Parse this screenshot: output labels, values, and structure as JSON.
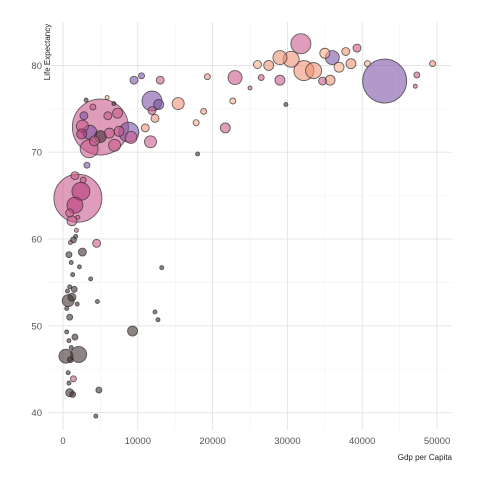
{
  "chart_data": {
    "type": "scatter",
    "title": "",
    "xlabel": "Gdp per Capita",
    "ylabel": "Life Expectancy",
    "xlim": [
      -2000,
      52000
    ],
    "ylim": [
      38,
      85
    ],
    "x_ticks": [
      0,
      10000,
      20000,
      30000,
      40000,
      50000
    ],
    "y_ticks": [
      40,
      50,
      60,
      70,
      80
    ],
    "grid": true,
    "legend": "none",
    "colors": {
      "low": "#000000",
      "mid": "#b5367a",
      "high": "#fdae8c",
      "purple": "#7b4fa6",
      "stroke": "#333333"
    },
    "points": [
      {
        "x": 43000,
        "y": 78.2,
        "size": 22,
        "color": "#7b4fa6"
      },
      {
        "x": 31800,
        "y": 82.5,
        "size": 10,
        "color": "#c8568a"
      },
      {
        "x": 32200,
        "y": 79.4,
        "size": 10,
        "color": "#f08f70"
      },
      {
        "x": 33500,
        "y": 79.4,
        "size": 8,
        "color": "#f08f70"
      },
      {
        "x": 30500,
        "y": 80.7,
        "size": 8,
        "color": "#f08f70"
      },
      {
        "x": 29000,
        "y": 80.9,
        "size": 7,
        "color": "#f08f70"
      },
      {
        "x": 36000,
        "y": 80.9,
        "size": 7,
        "color": "#7b4fa6"
      },
      {
        "x": 35000,
        "y": 81.4,
        "size": 5,
        "color": "#fdae8c"
      },
      {
        "x": 37800,
        "y": 81.6,
        "size": 4,
        "color": "#f08f70"
      },
      {
        "x": 39300,
        "y": 82.0,
        "size": 4,
        "color": "#c8568a"
      },
      {
        "x": 26000,
        "y": 80.1,
        "size": 4,
        "color": "#fdae8c"
      },
      {
        "x": 27500,
        "y": 80.0,
        "size": 5,
        "color": "#f08f70"
      },
      {
        "x": 29000,
        "y": 78.3,
        "size": 5,
        "color": "#c8568a"
      },
      {
        "x": 26500,
        "y": 78.6,
        "size": 3,
        "color": "#c8568a"
      },
      {
        "x": 23000,
        "y": 78.6,
        "size": 7,
        "color": "#c8568a"
      },
      {
        "x": 21700,
        "y": 72.8,
        "size": 5,
        "color": "#c8568a"
      },
      {
        "x": 22700,
        "y": 75.9,
        "size": 3,
        "color": "#fdae8c"
      },
      {
        "x": 35700,
        "y": 78.3,
        "size": 5,
        "color": "#f08f70"
      },
      {
        "x": 34700,
        "y": 78.2,
        "size": 4,
        "color": "#c8568a"
      },
      {
        "x": 36900,
        "y": 79.8,
        "size": 5,
        "color": "#fdae8c"
      },
      {
        "x": 38500,
        "y": 80.2,
        "size": 5,
        "color": "#f08f70"
      },
      {
        "x": 47300,
        "y": 78.9,
        "size": 3,
        "color": "#c8568a"
      },
      {
        "x": 49400,
        "y": 80.2,
        "size": 3,
        "color": "#f08f70"
      },
      {
        "x": 40700,
        "y": 80.2,
        "size": 3,
        "color": "#fdae8c"
      },
      {
        "x": 47100,
        "y": 77.6,
        "size": 2,
        "color": "#c8568a"
      },
      {
        "x": 19300,
        "y": 78.7,
        "size": 3,
        "color": "#f08f70"
      },
      {
        "x": 18800,
        "y": 74.7,
        "size": 3,
        "color": "#f08f70"
      },
      {
        "x": 17800,
        "y": 73.4,
        "size": 3,
        "color": "#fdae8c"
      },
      {
        "x": 18000,
        "y": 69.8,
        "size": 2,
        "color": "#3a2a2a"
      },
      {
        "x": 13000,
        "y": 78.3,
        "size": 4,
        "color": "#c8568a"
      },
      {
        "x": 12800,
        "y": 75.5,
        "size": 5,
        "color": "#7b4fa6"
      },
      {
        "x": 11900,
        "y": 75.9,
        "size": 10,
        "color": "#7b4fa6"
      },
      {
        "x": 15400,
        "y": 75.6,
        "size": 6,
        "color": "#f08f70"
      },
      {
        "x": 9500,
        "y": 78.3,
        "size": 4,
        "color": "#7b4fa6"
      },
      {
        "x": 10500,
        "y": 78.8,
        "size": 3,
        "color": "#7b4fa6"
      },
      {
        "x": 11900,
        "y": 74.8,
        "size": 4,
        "color": "#c8568a"
      },
      {
        "x": 11700,
        "y": 71.2,
        "size": 6,
        "color": "#c8568a"
      },
      {
        "x": 11000,
        "y": 72.8,
        "size": 4,
        "color": "#f08f70"
      },
      {
        "x": 12300,
        "y": 73.9,
        "size": 4,
        "color": "#f08f70"
      },
      {
        "x": 8800,
        "y": 72.3,
        "size": 10,
        "color": "#7b4fa6"
      },
      {
        "x": 9100,
        "y": 71.7,
        "size": 6,
        "color": "#c8568a"
      },
      {
        "x": 7500,
        "y": 72.4,
        "size": 5,
        "color": "#c8568a"
      },
      {
        "x": 5000,
        "y": 72.9,
        "size": 28,
        "color": "#c8568a"
      },
      {
        "x": 5000,
        "y": 71.8,
        "size": 6,
        "color": "#3a2a2a"
      },
      {
        "x": 3600,
        "y": 72.3,
        "size": 7,
        "color": "#7b4fa6"
      },
      {
        "x": 6200,
        "y": 72.2,
        "size": 5,
        "color": "#c8568a"
      },
      {
        "x": 6000,
        "y": 74.2,
        "size": 4,
        "color": "#c8568a"
      },
      {
        "x": 7300,
        "y": 74.5,
        "size": 5,
        "color": "#c8568a"
      },
      {
        "x": 6900,
        "y": 70.8,
        "size": 6,
        "color": "#c8568a"
      },
      {
        "x": 6800,
        "y": 75.6,
        "size": 2,
        "color": "#3a2a2a"
      },
      {
        "x": 5900,
        "y": 76.3,
        "size": 2,
        "color": "#fdae8c"
      },
      {
        "x": 2600,
        "y": 73.0,
        "size": 6,
        "color": "#c8568a"
      },
      {
        "x": 2800,
        "y": 74.2,
        "size": 4,
        "color": "#7b4fa6"
      },
      {
        "x": 4000,
        "y": 75.2,
        "size": 3,
        "color": "#c8568a"
      },
      {
        "x": 4200,
        "y": 71.3,
        "size": 5,
        "color": "#c8568a"
      },
      {
        "x": 3500,
        "y": 70.4,
        "size": 9,
        "color": "#c8568a"
      },
      {
        "x": 2500,
        "y": 72.1,
        "size": 5,
        "color": "#b5367a"
      },
      {
        "x": 3100,
        "y": 76.0,
        "size": 2,
        "color": "#3a2a2a"
      },
      {
        "x": 2000,
        "y": 64.7,
        "size": 24,
        "color": "#c8568a"
      },
      {
        "x": 2400,
        "y": 65.5,
        "size": 9,
        "color": "#b5367a"
      },
      {
        "x": 1600,
        "y": 63.9,
        "size": 8,
        "color": "#b5367a"
      },
      {
        "x": 1200,
        "y": 62.1,
        "size": 5,
        "color": "#c8568a"
      },
      {
        "x": 900,
        "y": 63.0,
        "size": 4,
        "color": "#c8568a"
      },
      {
        "x": 1600,
        "y": 67.3,
        "size": 4,
        "color": "#c8568a"
      },
      {
        "x": 2700,
        "y": 66.8,
        "size": 3,
        "color": "#c8568a"
      },
      {
        "x": 3200,
        "y": 68.5,
        "size": 3,
        "color": "#7b4fa6"
      },
      {
        "x": 4500,
        "y": 59.5,
        "size": 4,
        "color": "#c8568a"
      },
      {
        "x": 2000,
        "y": 62.5,
        "size": 2,
        "color": "#c8568a"
      },
      {
        "x": 1400,
        "y": 59.9,
        "size": 3,
        "color": "#3a2a2a"
      },
      {
        "x": 1700,
        "y": 60.3,
        "size": 2,
        "color": "#3a2a2a"
      },
      {
        "x": 1000,
        "y": 59.6,
        "size": 2,
        "color": "#b5367a"
      },
      {
        "x": 1800,
        "y": 61.0,
        "size": 2,
        "color": "#c8568a"
      },
      {
        "x": 2600,
        "y": 58.5,
        "size": 4,
        "color": "#3a2a2a"
      },
      {
        "x": 800,
        "y": 58.2,
        "size": 3,
        "color": "#3a2a2a"
      },
      {
        "x": 1100,
        "y": 57.3,
        "size": 2,
        "color": "#3a2a2a"
      },
      {
        "x": 2200,
        "y": 56.8,
        "size": 2,
        "color": "#3a2a2a"
      },
      {
        "x": 3700,
        "y": 55.4,
        "size": 2,
        "color": "#3a2a2a"
      },
      {
        "x": 1300,
        "y": 55.9,
        "size": 2,
        "color": "#3a2a2a"
      },
      {
        "x": 900,
        "y": 54.5,
        "size": 2,
        "color": "#3a2a2a"
      },
      {
        "x": 1500,
        "y": 54.2,
        "size": 3,
        "color": "#3a2a2a"
      },
      {
        "x": 600,
        "y": 54.0,
        "size": 2,
        "color": "#3a2a2a"
      },
      {
        "x": 1200,
        "y": 53.3,
        "size": 4,
        "color": "#3a2a2a"
      },
      {
        "x": 700,
        "y": 52.9,
        "size": 6,
        "color": "#3a2a2a"
      },
      {
        "x": 500,
        "y": 52.0,
        "size": 2,
        "color": "#3a2a2a"
      },
      {
        "x": 1900,
        "y": 52.5,
        "size": 2,
        "color": "#3a2a2a"
      },
      {
        "x": 4600,
        "y": 52.8,
        "size": 2,
        "color": "#3a2a2a"
      },
      {
        "x": 900,
        "y": 51.0,
        "size": 3,
        "color": "#3a2a2a"
      },
      {
        "x": 500,
        "y": 49.3,
        "size": 2,
        "color": "#3a2a2a"
      },
      {
        "x": 1600,
        "y": 48.7,
        "size": 3,
        "color": "#3a2a2a"
      },
      {
        "x": 800,
        "y": 48.3,
        "size": 2,
        "color": "#3a2a2a"
      },
      {
        "x": 1100,
        "y": 47.5,
        "size": 2,
        "color": "#3a2a2a"
      },
      {
        "x": 400,
        "y": 46.5,
        "size": 7,
        "color": "#3a2a2a"
      },
      {
        "x": 2100,
        "y": 46.7,
        "size": 8,
        "color": "#3a2a2a"
      },
      {
        "x": 1000,
        "y": 46.1,
        "size": 3,
        "color": "#3a2a2a"
      },
      {
        "x": 700,
        "y": 44.6,
        "size": 2,
        "color": "#3a2a2a"
      },
      {
        "x": 1400,
        "y": 43.9,
        "size": 3,
        "color": "#c8568a"
      },
      {
        "x": 800,
        "y": 43.4,
        "size": 2,
        "color": "#3a2a2a"
      },
      {
        "x": 900,
        "y": 42.3,
        "size": 4,
        "color": "#3a2a2a"
      },
      {
        "x": 1300,
        "y": 42.1,
        "size": 3,
        "color": "#3a2a2a"
      },
      {
        "x": 4800,
        "y": 42.6,
        "size": 3,
        "color": "#3a2a2a"
      },
      {
        "x": 4400,
        "y": 39.6,
        "size": 2,
        "color": "#3a2a2a"
      },
      {
        "x": 9300,
        "y": 49.4,
        "size": 5,
        "color": "#3a2a2a"
      },
      {
        "x": 13200,
        "y": 56.7,
        "size": 2,
        "color": "#3a2a2a"
      },
      {
        "x": 12300,
        "y": 51.6,
        "size": 2,
        "color": "#3a2a2a"
      },
      {
        "x": 12700,
        "y": 50.7,
        "size": 2,
        "color": "#3a2a2a"
      },
      {
        "x": 29800,
        "y": 75.5,
        "size": 2,
        "color": "#3a2a2a"
      },
      {
        "x": 25000,
        "y": 77.4,
        "size": 2,
        "color": "#c8568a"
      }
    ]
  }
}
